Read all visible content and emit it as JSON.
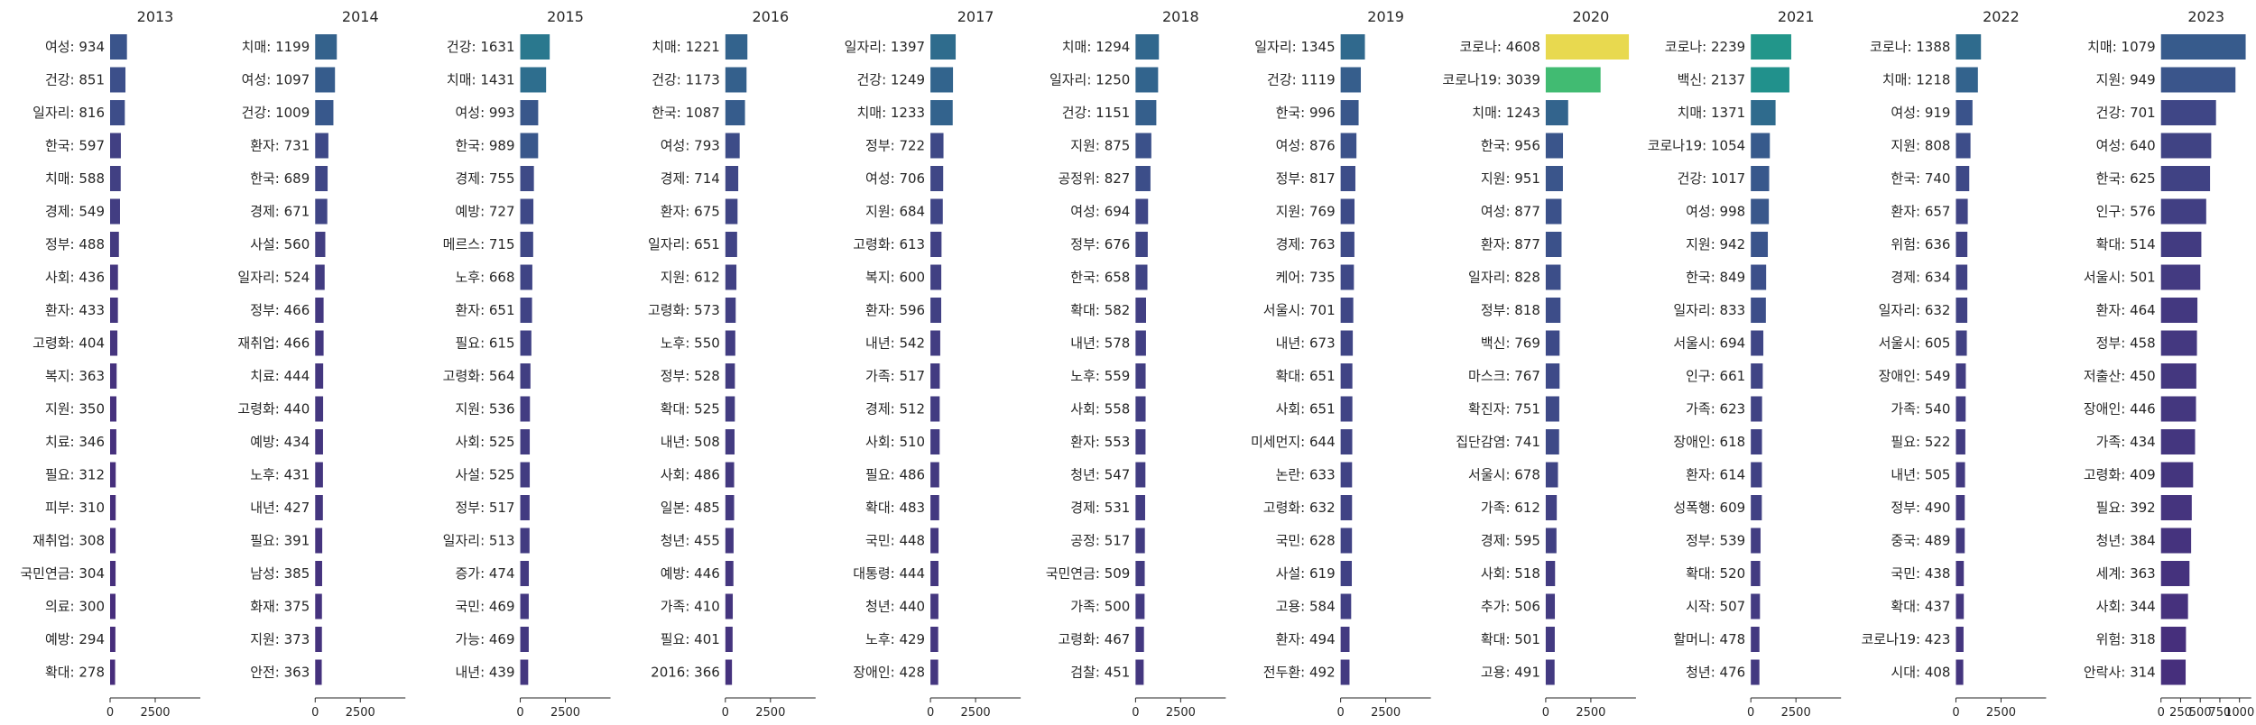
{
  "chart_data": [
    {
      "type": "bar",
      "orientation": "horizontal",
      "title": "2013",
      "xlim": [
        0,
        5000
      ],
      "xticks": [
        0,
        2500
      ],
      "categories": [
        "여성",
        "건강",
        "일자리",
        "한국",
        "치매",
        "경제",
        "정부",
        "사회",
        "환자",
        "고령화",
        "복지",
        "지원",
        "치료",
        "필요",
        "피부",
        "재취업",
        "국민연금",
        "의료",
        "예방",
        "확대"
      ],
      "values": [
        934,
        851,
        816,
        597,
        588,
        549,
        488,
        436,
        433,
        404,
        363,
        350,
        346,
        312,
        310,
        308,
        304,
        300,
        294,
        278
      ]
    },
    {
      "type": "bar",
      "orientation": "horizontal",
      "title": "2014",
      "xlim": [
        0,
        5000
      ],
      "xticks": [
        0,
        2500
      ],
      "categories": [
        "치매",
        "여성",
        "건강",
        "환자",
        "한국",
        "경제",
        "사설",
        "일자리",
        "정부",
        "재취업",
        "치료",
        "고령화",
        "예방",
        "노후",
        "내년",
        "필요",
        "남성",
        "화재",
        "지원",
        "안전"
      ],
      "values": [
        1199,
        1097,
        1009,
        731,
        689,
        671,
        560,
        524,
        466,
        466,
        444,
        440,
        434,
        431,
        427,
        391,
        385,
        375,
        373,
        363
      ]
    },
    {
      "type": "bar",
      "orientation": "horizontal",
      "title": "2015",
      "xlim": [
        0,
        5000
      ],
      "xticks": [
        0,
        2500
      ],
      "categories": [
        "건강",
        "치매",
        "여성",
        "한국",
        "경제",
        "예방",
        "메르스",
        "노후",
        "환자",
        "필요",
        "고령화",
        "지원",
        "사회",
        "사설",
        "정부",
        "일자리",
        "증가",
        "국민",
        "가능",
        "내년"
      ],
      "values": [
        1631,
        1431,
        993,
        989,
        755,
        727,
        715,
        668,
        651,
        615,
        564,
        536,
        525,
        525,
        517,
        513,
        474,
        469,
        469,
        439
      ]
    },
    {
      "type": "bar",
      "orientation": "horizontal",
      "title": "2016",
      "xlim": [
        0,
        5000
      ],
      "xticks": [
        0,
        2500
      ],
      "categories": [
        "치매",
        "건강",
        "한국",
        "여성",
        "경제",
        "환자",
        "일자리",
        "지원",
        "고령화",
        "노후",
        "정부",
        "확대",
        "내년",
        "사회",
        "일본",
        "청년",
        "예방",
        "가족",
        "필요",
        "2016"
      ],
      "values": [
        1221,
        1173,
        1087,
        793,
        714,
        675,
        651,
        612,
        573,
        550,
        528,
        525,
        508,
        486,
        485,
        455,
        446,
        410,
        401,
        366
      ]
    },
    {
      "type": "bar",
      "orientation": "horizontal",
      "title": "2017",
      "xlim": [
        0,
        5000
      ],
      "xticks": [
        0,
        2500
      ],
      "categories": [
        "일자리",
        "건강",
        "치매",
        "정부",
        "여성",
        "지원",
        "고령화",
        "복지",
        "환자",
        "내년",
        "가족",
        "경제",
        "사회",
        "필요",
        "확대",
        "국민",
        "대통령",
        "청년",
        "노후",
        "장애인"
      ],
      "values": [
        1397,
        1249,
        1233,
        722,
        706,
        684,
        613,
        600,
        596,
        542,
        517,
        512,
        510,
        486,
        483,
        448,
        444,
        440,
        429,
        428
      ]
    },
    {
      "type": "bar",
      "orientation": "horizontal",
      "title": "2018",
      "xlim": [
        0,
        5000
      ],
      "xticks": [
        0,
        2500
      ],
      "categories": [
        "치매",
        "일자리",
        "건강",
        "지원",
        "공정위",
        "여성",
        "정부",
        "한국",
        "확대",
        "내년",
        "노후",
        "사회",
        "환자",
        "청년",
        "경제",
        "공정",
        "국민연금",
        "가족",
        "고령화",
        "검찰"
      ],
      "values": [
        1294,
        1250,
        1151,
        875,
        827,
        694,
        676,
        658,
        582,
        578,
        559,
        558,
        553,
        547,
        531,
        517,
        509,
        500,
        467,
        451
      ]
    },
    {
      "type": "bar",
      "orientation": "horizontal",
      "title": "2019",
      "xlim": [
        0,
        5000
      ],
      "xticks": [
        0,
        2500
      ],
      "categories": [
        "일자리",
        "건강",
        "한국",
        "여성",
        "정부",
        "지원",
        "경제",
        "케어",
        "서울시",
        "내년",
        "확대",
        "사회",
        "미세먼지",
        "논란",
        "고령화",
        "국민",
        "사설",
        "고용",
        "환자",
        "전두환"
      ],
      "values": [
        1345,
        1119,
        996,
        876,
        817,
        769,
        763,
        735,
        701,
        673,
        651,
        651,
        644,
        633,
        632,
        628,
        619,
        584,
        494,
        492
      ]
    },
    {
      "type": "bar",
      "orientation": "horizontal",
      "title": "2020",
      "xlim": [
        0,
        5000
      ],
      "xticks": [
        0,
        2500
      ],
      "categories": [
        "코로나",
        "코로나19",
        "치매",
        "한국",
        "지원",
        "여성",
        "환자",
        "일자리",
        "정부",
        "백신",
        "마스크",
        "확진자",
        "집단감염",
        "서울시",
        "가족",
        "경제",
        "사회",
        "추가",
        "확대",
        "고용"
      ],
      "values": [
        4608,
        3039,
        1243,
        956,
        951,
        877,
        877,
        828,
        818,
        769,
        767,
        751,
        741,
        678,
        612,
        595,
        518,
        506,
        501,
        491
      ]
    },
    {
      "type": "bar",
      "orientation": "horizontal",
      "title": "2021",
      "xlim": [
        0,
        5000
      ],
      "xticks": [
        0,
        2500
      ],
      "categories": [
        "코로나",
        "백신",
        "치매",
        "코로나19",
        "건강",
        "여성",
        "지원",
        "한국",
        "일자리",
        "서울시",
        "인구",
        "가족",
        "장애인",
        "환자",
        "성폭행",
        "정부",
        "확대",
        "시작",
        "할머니",
        "청년"
      ],
      "values": [
        2239,
        2137,
        1371,
        1054,
        1017,
        998,
        942,
        849,
        833,
        694,
        661,
        623,
        618,
        614,
        609,
        539,
        520,
        507,
        478,
        476
      ]
    },
    {
      "type": "bar",
      "orientation": "horizontal",
      "title": "2022",
      "xlim": [
        0,
        5000
      ],
      "xticks": [
        0,
        2500
      ],
      "categories": [
        "코로나",
        "치매",
        "여성",
        "지원",
        "한국",
        "환자",
        "위험",
        "경제",
        "일자리",
        "서울시",
        "장애인",
        "가족",
        "필요",
        "내년",
        "정부",
        "중국",
        "국민",
        "확대",
        "코로나19",
        "시대"
      ],
      "values": [
        1388,
        1218,
        919,
        808,
        740,
        657,
        636,
        634,
        632,
        605,
        549,
        540,
        522,
        505,
        490,
        489,
        438,
        437,
        423,
        408
      ]
    },
    {
      "type": "bar",
      "orientation": "horizontal",
      "title": "2023",
      "xlim": [
        0,
        1150
      ],
      "xticks": [
        0,
        250,
        500,
        750,
        1000
      ],
      "categories": [
        "치매",
        "지원",
        "건강",
        "여성",
        "한국",
        "인구",
        "확대",
        "서울시",
        "환자",
        "정부",
        "저출산",
        "장애인",
        "가족",
        "고령화",
        "필요",
        "청년",
        "세계",
        "사회",
        "위험",
        "안락사"
      ],
      "values": [
        1079,
        949,
        701,
        640,
        625,
        576,
        514,
        501,
        464,
        458,
        450,
        446,
        434,
        409,
        392,
        384,
        363,
        344,
        318,
        314
      ]
    }
  ],
  "color_scale": {
    "min": 278,
    "max": 4608,
    "colors": [
      "#472d7b",
      "#3b528b",
      "#2c728e",
      "#21918c",
      "#28ae80",
      "#5ec962",
      "#addc30",
      "#e8d94f"
    ]
  }
}
